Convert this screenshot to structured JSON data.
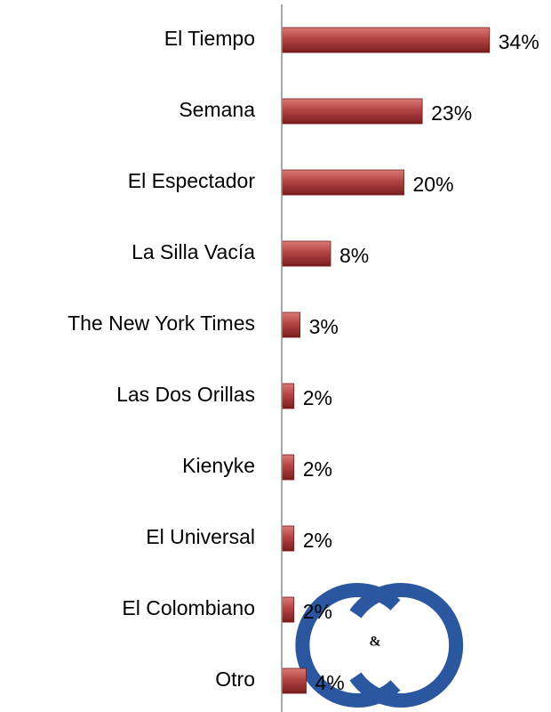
{
  "chart_data": {
    "type": "bar",
    "orientation": "horizontal",
    "categories": [
      "El Tiempo",
      "Semana",
      "El Espectador",
      "La Silla Vacía",
      "The New York Times",
      "Las Dos Orillas",
      "Kienyke",
      "El Universal",
      "El Colombiano",
      "Otro"
    ],
    "values": [
      34,
      23,
      20,
      8,
      3,
      2,
      2,
      2,
      2,
      4
    ],
    "value_labels": [
      "34%",
      "23%",
      "20%",
      "8%",
      "3%",
      "2%",
      "2%",
      "2%",
      "2%",
      "4%"
    ],
    "color": "#a63a3a",
    "xlim": [
      0,
      40
    ]
  },
  "logo": {
    "text": "&"
  }
}
